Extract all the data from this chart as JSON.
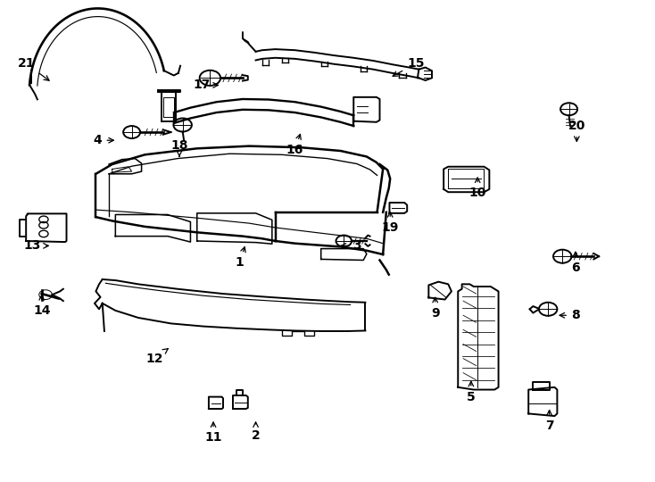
{
  "background_color": "#ffffff",
  "line_color": "#000000",
  "fig_width": 7.34,
  "fig_height": 5.4,
  "dpi": 100,
  "parts_labels": {
    "1": [
      0.365,
      0.455,
      0.01,
      0.04
    ],
    "2": [
      0.39,
      0.095,
      0.0,
      0.035
    ],
    "3": [
      0.545,
      0.49,
      -0.03,
      0.0
    ],
    "4": [
      0.148,
      0.71,
      0.03,
      0.0
    ],
    "5": [
      0.72,
      0.175,
      0.0,
      0.04
    ],
    "6": [
      0.88,
      0.445,
      0.0,
      0.04
    ],
    "7": [
      0.84,
      0.115,
      0.0,
      0.04
    ],
    "8": [
      0.88,
      0.345,
      -0.03,
      0.0
    ],
    "9": [
      0.665,
      0.35,
      0.0,
      0.04
    ],
    "10": [
      0.73,
      0.6,
      0.0,
      0.04
    ],
    "11": [
      0.325,
      0.09,
      0.0,
      0.04
    ],
    "12": [
      0.235,
      0.255,
      0.025,
      0.025
    ],
    "13": [
      0.048,
      0.49,
      0.03,
      0.0
    ],
    "14": [
      0.062,
      0.355,
      0.0,
      0.04
    ],
    "15": [
      0.635,
      0.87,
      -0.04,
      -0.03
    ],
    "16": [
      0.45,
      0.69,
      0.01,
      0.04
    ],
    "17": [
      0.308,
      0.825,
      0.03,
      0.0
    ],
    "18": [
      0.273,
      0.7,
      0.0,
      -0.03
    ],
    "19": [
      0.596,
      0.528,
      0.0,
      0.04
    ],
    "20": [
      0.882,
      0.74,
      0.0,
      -0.04
    ],
    "21": [
      0.038,
      0.87,
      0.04,
      -0.04
    ]
  }
}
